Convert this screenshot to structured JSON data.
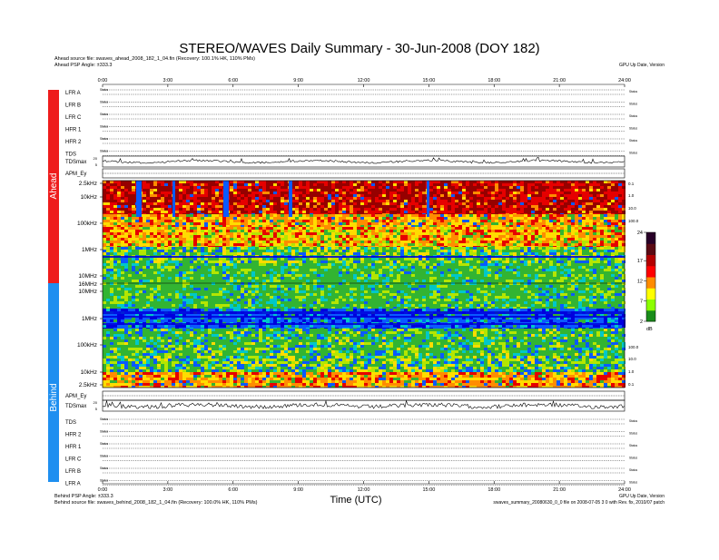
{
  "chart_data": {
    "type": "heatmap",
    "title": "STEREO/WAVES Daily Summary - 30-Jun-2008 (DOY 182)",
    "xlabel": "Time (UTC)",
    "xlim": [
      0,
      24
    ],
    "x_ticks": [
      "0:00",
      "3:00",
      "6:00",
      "9:00",
      "12:00",
      "15:00",
      "18:00",
      "21:00",
      "24:00"
    ],
    "header_lines": [
      "Ahead source file: swaves_ahead_2008_182_1_04.fin (Recovery: 100.1% HK, 110% PMs)",
      "Ahead PSP Angle: ±333.3"
    ],
    "header_right": "GPU Up Date, Version",
    "footer_lines": [
      "Behind PSP Angle: ±333.3",
      "Behind source file: swaves_behind_2008_182_1_04.fin (Recovery: 100.0% HK, 110% PMs)"
    ],
    "footer_right": [
      "GPU Up Date, Version",
      "swaves_summary_20080630_0_0 file on 2008-07-05 3 0 with Rev. fix, 2010/07 patch"
    ],
    "spacecraft": {
      "ahead": "Ahead",
      "behind": "Behind"
    },
    "colors": {
      "ahead": "#ee1c1c",
      "behind": "#1e8ff0"
    },
    "ahead_panels": [
      {
        "label": "LFR A",
        "status": "Status"
      },
      {
        "label": "LFR B",
        "status": "Status"
      },
      {
        "label": "LFR C",
        "status": "Status"
      },
      {
        "label": "HFR 1",
        "status": "Status"
      },
      {
        "label": "HFR 2",
        "status": "Status"
      },
      {
        "label": "TDS",
        "status": "Status"
      }
    ],
    "behind_panels": [
      {
        "label": "TDS",
        "status": "Status"
      },
      {
        "label": "HFR 2",
        "status": "Status"
      },
      {
        "label": "HFR 1",
        "status": "Status"
      },
      {
        "label": "LFR C",
        "status": "Status"
      },
      {
        "label": "LFR B",
        "status": "Status"
      },
      {
        "label": "LFR A",
        "status": "Status"
      }
    ],
    "ahead_traces": {
      "tdsmax": "TDSmax",
      "apm": "APM_Ey"
    },
    "behind_traces": {
      "tdsmax": "TDSmax",
      "apm": "APM_Ey"
    },
    "trace_tick_labels": {
      "upper": "20",
      "lower": "5"
    },
    "ahead_spectrogram_freq_labels": [
      "2.5kHz",
      "10kHz",
      "100kHz",
      "1MHz",
      "10MHz",
      "16MHz"
    ],
    "behind_spectrogram_freq_labels": [
      "10MHz",
      "1MHz",
      "100kHz",
      "10kHz",
      "2.5kHz"
    ],
    "right_axis_labels": [
      "0.1",
      "1.0",
      "10.0",
      "100.0"
    ],
    "colorbar": {
      "ticks": [
        "24",
        "17",
        "12",
        "7",
        "2"
      ],
      "range": [
        2,
        24
      ],
      "unit": "dB",
      "colors": [
        "#1a8c1a",
        "#8cff00",
        "#ffff00",
        "#ff8c00",
        "#ff0000",
        "#b40000",
        "#5a0a14",
        "#280028"
      ]
    },
    "spectrogram_palette": {
      "dark_blue": "#0000dd",
      "blue": "#0a5aff",
      "cyan": "#00c8c8",
      "green": "#32b432",
      "yellow_green": "#b4e600",
      "yellow": "#ffdc00",
      "orange": "#ff8c00",
      "red": "#e60000",
      "dark_red": "#960000"
    }
  }
}
